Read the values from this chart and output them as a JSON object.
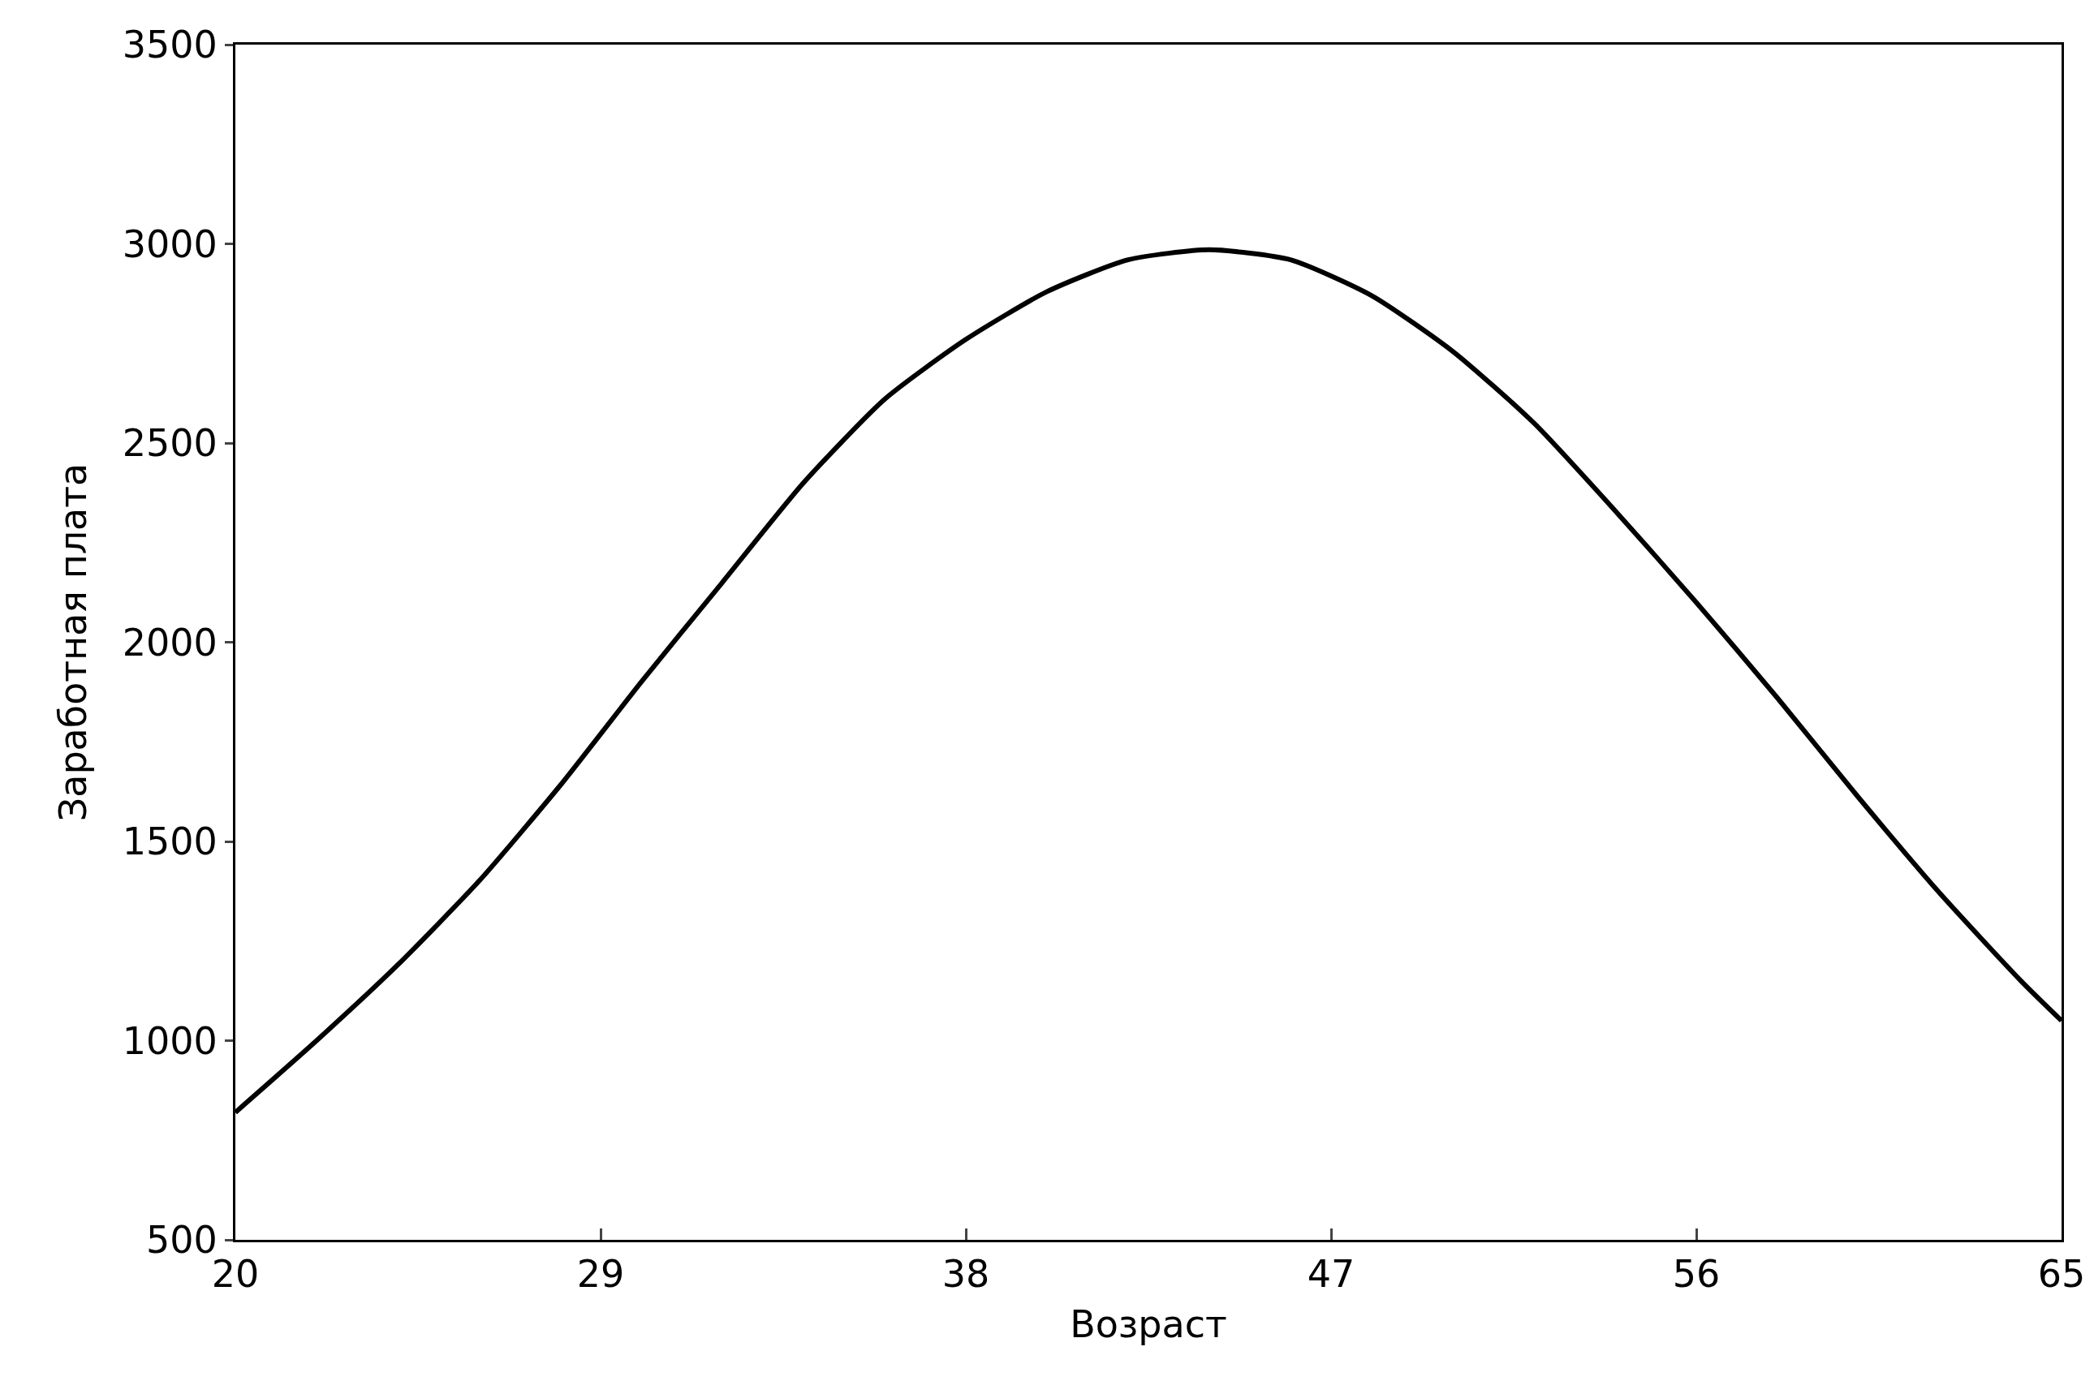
{
  "chart_data": {
    "type": "line",
    "xlabel": "Возраст",
    "ylabel": "Заработная плата",
    "x": [
      20,
      22,
      24,
      26,
      28,
      30,
      32,
      34,
      36,
      38,
      40,
      42,
      44,
      46,
      48,
      50,
      52,
      54,
      56,
      58,
      60,
      62,
      64,
      65
    ],
    "series": [
      {
        "color": "#000000",
        "values": [
          820,
          1000,
          1190,
          1400,
          1640,
          1900,
          2150,
          2400,
          2610,
          2760,
          2880,
          2960,
          2985,
          2960,
          2870,
          2730,
          2550,
          2330,
          2100,
          1860,
          1610,
          1370,
          1150,
          1050
        ]
      }
    ],
    "xlim": [
      20,
      65
    ],
    "xticks": [
      20,
      29,
      38,
      47,
      56,
      65
    ],
    "ylim": [
      500,
      3500
    ],
    "yticks": [
      500,
      1000,
      1500,
      2000,
      2500,
      3000,
      3500
    ],
    "grid": false,
    "marker": "none",
    "line_style": "solid"
  }
}
